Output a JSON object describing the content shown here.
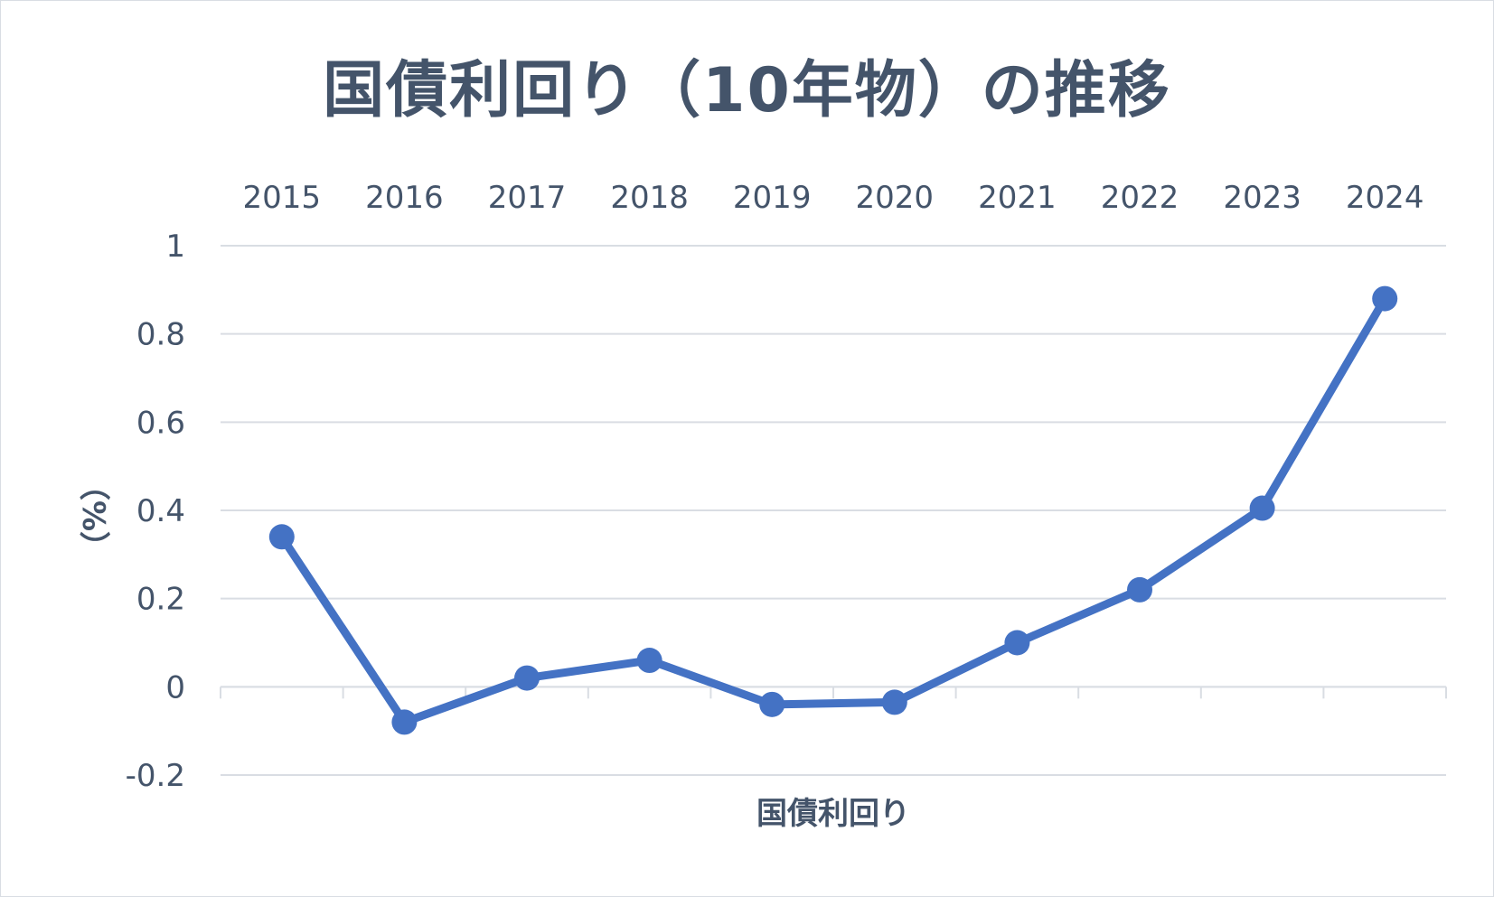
{
  "chart_data": {
    "type": "line",
    "title": "国債利回り（10年物）の推移",
    "categories": [
      "2015",
      "2016",
      "2017",
      "2018",
      "2019",
      "2020",
      "2021",
      "2022",
      "2023",
      "2024"
    ],
    "series": [
      {
        "name": "国債利回り",
        "values": [
          0.34,
          -0.08,
          0.02,
          0.06,
          -0.04,
          -0.035,
          0.1,
          0.22,
          0.405,
          0.88
        ],
        "color": "#4472c4"
      }
    ],
    "xlabel": "国債利回り",
    "ylabel": "（%）",
    "ylim": [
      -0.2,
      1
    ],
    "yticks": [
      1,
      0.8,
      0.6,
      0.4,
      0.2,
      0,
      -0.2
    ],
    "ytick_labels": [
      "1",
      "0.8",
      "0.6",
      "0.4",
      "0.2",
      "0",
      "-0.2"
    ],
    "x_axis_labels_position": "top",
    "grid": true,
    "gridline_color": "#d9dde3",
    "text_color": "#44546a"
  }
}
